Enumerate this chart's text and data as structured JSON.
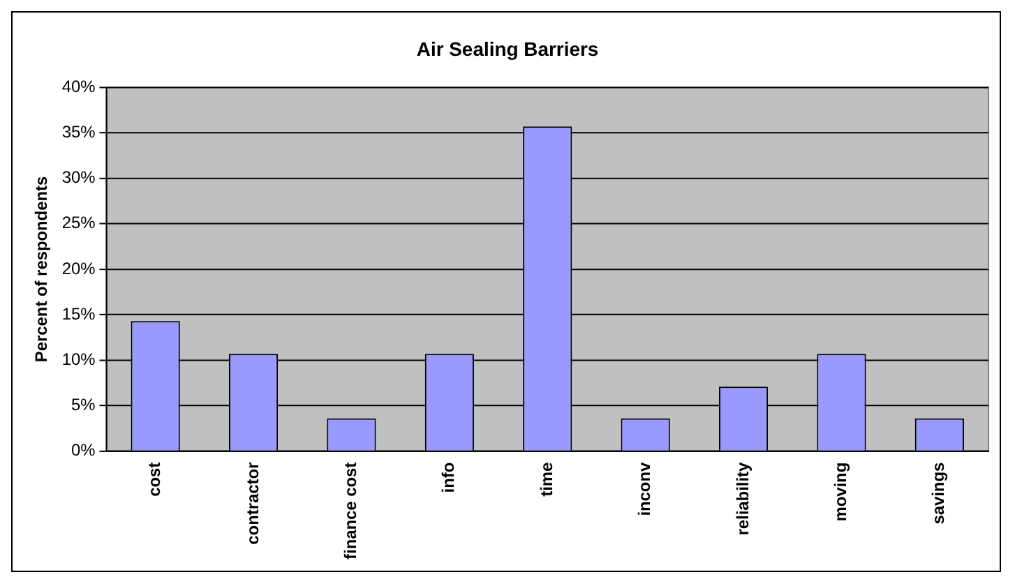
{
  "chart_data": {
    "type": "bar",
    "title": "Air Sealing Barriers",
    "ylabel": "Percent of respondents",
    "categories": [
      "cost",
      "contractor",
      "finance cost",
      "info",
      "time",
      "inconv",
      "reliability",
      "moving",
      "savings"
    ],
    "values": [
      14.3,
      10.7,
      3.6,
      10.7,
      35.7,
      3.6,
      7.1,
      10.7,
      3.6
    ],
    "color": "#9999ff",
    "ylim": [
      0,
      40
    ],
    "yticks": [
      {
        "value": 0,
        "label": "0%"
      },
      {
        "value": 5,
        "label": "5%"
      },
      {
        "value": 10,
        "label": "10%"
      },
      {
        "value": 15,
        "label": "15%"
      },
      {
        "value": 20,
        "label": "20%"
      },
      {
        "value": 25,
        "label": "25%"
      },
      {
        "value": 30,
        "label": "30%"
      },
      {
        "value": 35,
        "label": "35%"
      },
      {
        "value": 40,
        "label": "40%"
      }
    ],
    "grid": "y",
    "legend": false
  }
}
